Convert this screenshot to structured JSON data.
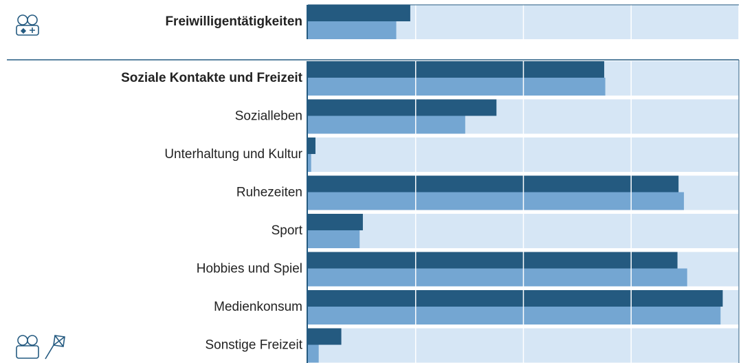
{
  "chart_data": {
    "type": "bar",
    "orientation": "horizontal",
    "categories": [
      "Freiwilligentätigkeiten",
      "Soziale Kontakte und Freizeit",
      "Sozialleben",
      "Unterhaltung und Kultur",
      "Ruhezeiten",
      "Sport",
      "Hobbies und Spiel",
      "Medienkonsum",
      "Sonstige Freizeit"
    ],
    "bold": [
      true,
      true,
      false,
      false,
      false,
      false,
      false,
      false,
      false
    ],
    "series": [
      {
        "color": "#245a80",
        "values": [
          0.95,
          2.75,
          1.75,
          0.07,
          3.44,
          0.51,
          3.43,
          3.85,
          0.31
        ]
      },
      {
        "color": "#74a6d2",
        "values": [
          0.82,
          2.76,
          1.46,
          0.03,
          3.49,
          0.48,
          3.52,
          3.83,
          0.1
        ]
      }
    ],
    "xlim": [
      0,
      4
    ],
    "xticks": [
      0,
      1,
      2,
      3,
      4
    ],
    "grid": true,
    "band_color": "#d6e6f5"
  }
}
